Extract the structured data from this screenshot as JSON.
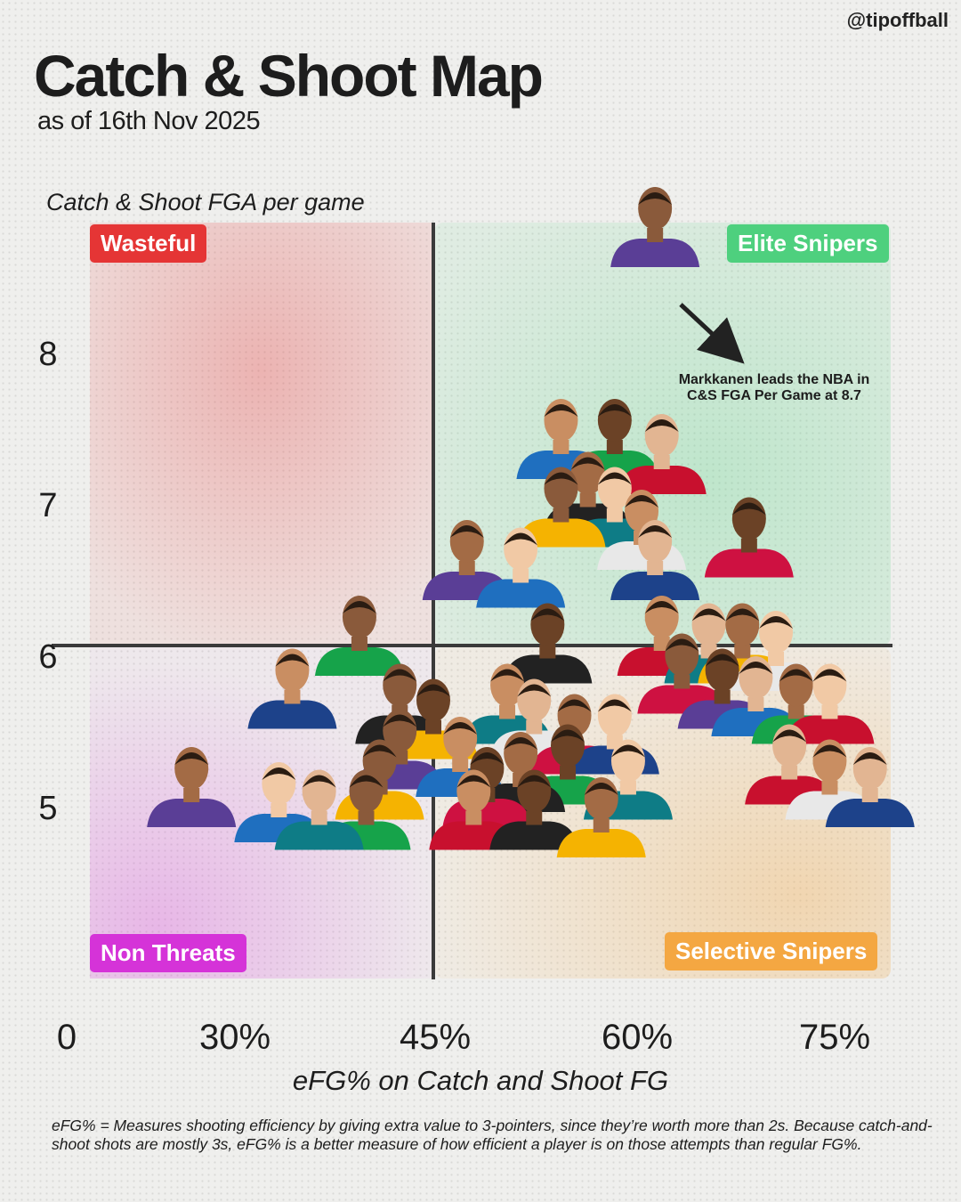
{
  "handle": "@tipoffball",
  "title": "Catch & Shoot Map",
  "subtitle": "as of 16th Nov 2025",
  "quadrants": {
    "top_left": "Wasteful",
    "top_right": "Elite Snipers",
    "bottom_left": "Non Threats",
    "bottom_right": "Selective Snipers"
  },
  "annotation": "Markkanen leads the NBA in C&S FGA Per Game at 8.7",
  "footnote": "eFG% = Measures shooting efficiency by giving extra value to 3-pointers, since they’re worth more than 2s. Because catch-and-shoot shots are mostly 3s, eFG% is a better measure of how efficient a player is on those attempts than regular FG%.",
  "colors": {
    "wasteful": "#e53535",
    "elite": "#4ed07e",
    "non_threats": "#d533d8",
    "selective": "#f4a742"
  },
  "chart_data": {
    "type": "scatter",
    "xlabel": "eFG% on Catch and Shoot FG",
    "ylabel": "Catch & Shoot FGA per game",
    "x_ticks": [
      "0",
      "30%",
      "45%",
      "60%",
      "75%"
    ],
    "y_ticks": [
      "8",
      "7",
      "6",
      "5"
    ],
    "quadrant_split": {
      "x": 45,
      "y": 6.4
    },
    "points": [
      {
        "x": 61.5,
        "y": 8.7
      },
      {
        "x": 54.5,
        "y": 7.3
      },
      {
        "x": 58.5,
        "y": 7.3
      },
      {
        "x": 62,
        "y": 7.2
      },
      {
        "x": 56.5,
        "y": 6.95
      },
      {
        "x": 58.5,
        "y": 6.85
      },
      {
        "x": 60.5,
        "y": 6.7
      },
      {
        "x": 54.5,
        "y": 6.85
      },
      {
        "x": 68.5,
        "y": 6.65
      },
      {
        "x": 61.5,
        "y": 6.5
      },
      {
        "x": 47.5,
        "y": 6.5
      },
      {
        "x": 51.5,
        "y": 6.45
      },
      {
        "x": 39.5,
        "y": 6.0
      },
      {
        "x": 34.5,
        "y": 5.65
      },
      {
        "x": 53.5,
        "y": 5.95
      },
      {
        "x": 62,
        "y": 6.0
      },
      {
        "x": 65.5,
        "y": 5.95
      },
      {
        "x": 68,
        "y": 5.95
      },
      {
        "x": 70.5,
        "y": 5.9
      },
      {
        "x": 63.5,
        "y": 5.75
      },
      {
        "x": 66.5,
        "y": 5.65
      },
      {
        "x": 69,
        "y": 5.6
      },
      {
        "x": 72,
        "y": 5.55
      },
      {
        "x": 74.5,
        "y": 5.55
      },
      {
        "x": 42.5,
        "y": 5.55
      },
      {
        "x": 45,
        "y": 5.45
      },
      {
        "x": 50.5,
        "y": 5.55
      },
      {
        "x": 52.5,
        "y": 5.45
      },
      {
        "x": 55.5,
        "y": 5.35
      },
      {
        "x": 58.5,
        "y": 5.35
      },
      {
        "x": 42.5,
        "y": 5.25
      },
      {
        "x": 47,
        "y": 5.2
      },
      {
        "x": 51.5,
        "y": 5.1
      },
      {
        "x": 55,
        "y": 5.15
      },
      {
        "x": 59.5,
        "y": 5.05
      },
      {
        "x": 41,
        "y": 5.05
      },
      {
        "x": 49,
        "y": 5.0
      },
      {
        "x": 71.5,
        "y": 5.15
      },
      {
        "x": 74.5,
        "y": 5.05
      },
      {
        "x": 77.5,
        "y": 5.0
      },
      {
        "x": 27,
        "y": 5.0
      },
      {
        "x": 33.5,
        "y": 4.9
      },
      {
        "x": 40,
        "y": 4.85
      },
      {
        "x": 48,
        "y": 4.85
      },
      {
        "x": 52.5,
        "y": 4.85
      },
      {
        "x": 57.5,
        "y": 4.8
      },
      {
        "x": 36.5,
        "y": 4.85
      }
    ]
  }
}
